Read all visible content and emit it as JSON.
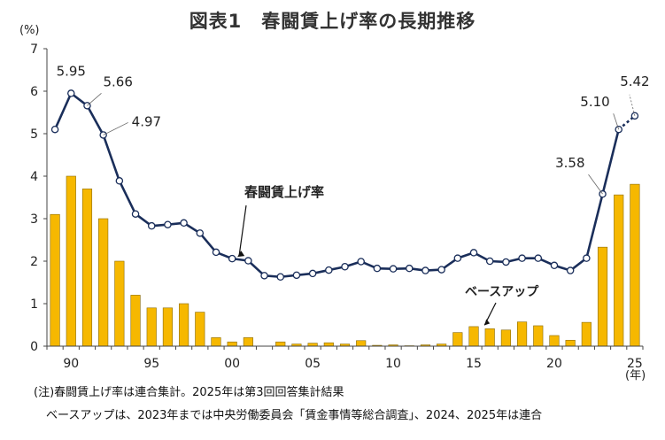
{
  "title": "図表1　春闘賃上げ率の長期推移",
  "notes": {
    "line1": "(注)春闘賃上げ率は連合集計。2025年は第3回回答集計結果",
    "line2": "ベースアップは、2023年までは中央労働委員会「賃金事情等総合調査」、2024、2025年は連合"
  },
  "chart_data": {
    "type": "bar+line",
    "y_unit_label": "(%)",
    "x_unit_label": "(年)",
    "ylim": [
      0,
      7
    ],
    "yticks": [
      0,
      1,
      2,
      3,
      4,
      5,
      6,
      7
    ],
    "x_ticks": [
      {
        "year": 1990,
        "label": "90"
      },
      {
        "year": 1995,
        "label": "95"
      },
      {
        "year": 2000,
        "label": "00"
      },
      {
        "year": 2005,
        "label": "05"
      },
      {
        "year": 2010,
        "label": "10"
      },
      {
        "year": 2015,
        "label": "15"
      },
      {
        "year": 2020,
        "label": "20"
      },
      {
        "year": 2025,
        "label": "25"
      }
    ],
    "years": [
      1989,
      1990,
      1991,
      1992,
      1993,
      1994,
      1995,
      1996,
      1997,
      1998,
      1999,
      2000,
      2001,
      2002,
      2003,
      2004,
      2005,
      2006,
      2007,
      2008,
      2009,
      2010,
      2011,
      2012,
      2013,
      2014,
      2015,
      2016,
      2017,
      2018,
      2019,
      2020,
      2021,
      2022,
      2023,
      2024,
      2025
    ],
    "series": [
      {
        "name": "ベースアップ",
        "type": "bar",
        "color": "#f6b800",
        "values": [
          3.1,
          4.0,
          3.7,
          3.0,
          2.0,
          1.2,
          0.9,
          0.9,
          1.0,
          0.8,
          0.2,
          0.1,
          0.2,
          0.0,
          0.1,
          0.05,
          0.07,
          0.08,
          0.05,
          0.13,
          0.02,
          0.03,
          0.01,
          0.03,
          0.05,
          0.32,
          0.46,
          0.41,
          0.38,
          0.57,
          0.48,
          0.25,
          0.14,
          0.56,
          2.33,
          3.56,
          3.81
        ]
      },
      {
        "name": "春闘賃上げ率",
        "type": "line",
        "color": "#1a2e5a",
        "values": [
          5.1,
          5.95,
          5.66,
          4.97,
          3.89,
          3.11,
          2.83,
          2.86,
          2.9,
          2.66,
          2.21,
          2.06,
          2.01,
          1.66,
          1.63,
          1.67,
          1.71,
          1.79,
          1.87,
          1.99,
          1.83,
          1.82,
          1.83,
          1.78,
          1.8,
          2.07,
          2.2,
          2.0,
          1.98,
          2.07,
          2.07,
          1.9,
          1.78,
          2.07,
          3.58,
          5.1,
          5.42
        ]
      }
    ],
    "annotations": [
      {
        "year": 1990,
        "label": "5.95"
      },
      {
        "year": 1991,
        "label": "5.66"
      },
      {
        "year": 1992,
        "label": "4.97"
      },
      {
        "year": 2023,
        "label": "3.58"
      },
      {
        "year": 2024,
        "label": "5.10"
      },
      {
        "year": 2025,
        "label": "5.42"
      }
    ]
  }
}
